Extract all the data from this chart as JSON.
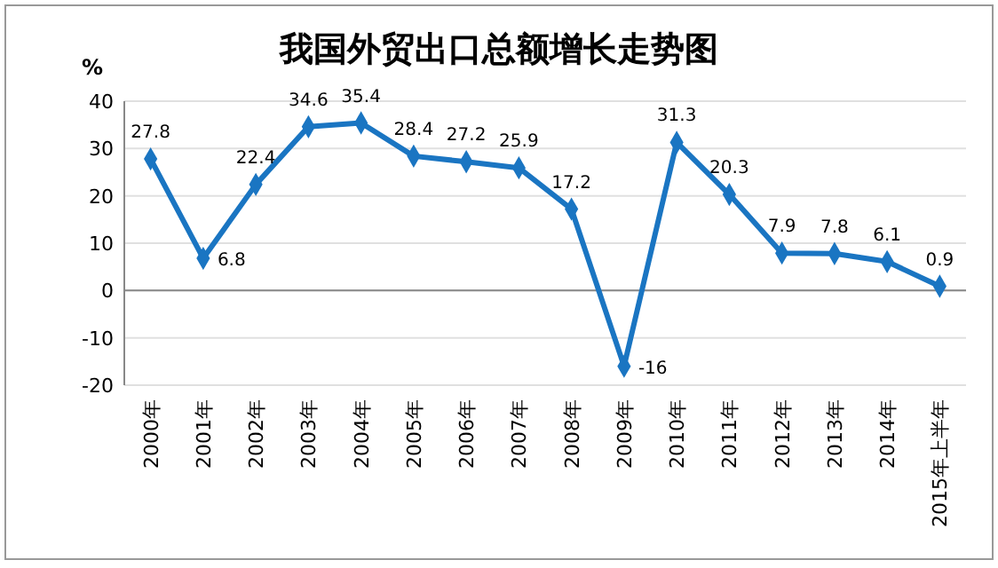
{
  "chart_data": {
    "type": "line",
    "title": "我国外贸出口总额增长走势图",
    "ylabel": "%",
    "categories": [
      "2000年",
      "2001年",
      "2002年",
      "2003年",
      "2004年",
      "2005年",
      "2006年",
      "2007年",
      "2008年",
      "2009年",
      "2010年",
      "2011年",
      "2012年",
      "2013年",
      "2014年",
      "2015年上半年"
    ],
    "series": [
      {
        "color": "#1a75c2",
        "values": [
          27.8,
          6.8,
          22.4,
          34.6,
          35.4,
          28.4,
          27.2,
          25.9,
          17.2,
          -16,
          31.3,
          20.3,
          7.9,
          7.8,
          6.1,
          0.9
        ]
      }
    ],
    "ylim": [
      -20,
      40
    ],
    "yticks": [
      -20,
      -10,
      0,
      10,
      20,
      30,
      40
    ],
    "grid": "y",
    "marker": "diamond",
    "line_style": "solid",
    "data_labels": true
  }
}
